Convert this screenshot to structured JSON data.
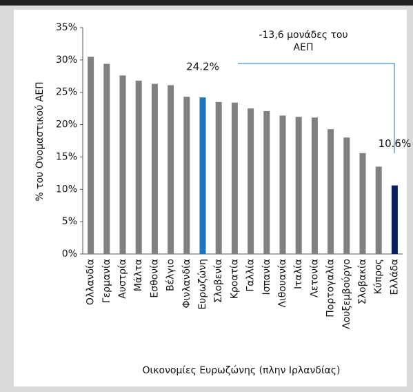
{
  "chart_data": {
    "type": "bar",
    "y_label": "% του Ονομαστικού ΑΕΠ",
    "x_label": "Οικονομίες Ευρωζώνης (πλην Ιρλανδίας)",
    "annotation": "-13,6 μονάδες του ΑΕΠ",
    "categories": [
      "Ολλανδία",
      "Γερμανία",
      "Αυστρία",
      "Μάλτα",
      "Εσθονία",
      "Βέλγιο",
      "Φινλανδία",
      "Ευρωζώνη",
      "Σλοβενία",
      "Κροατία",
      "Γαλλία",
      "Ισπανία",
      "Λιθουανία",
      "Ιταλία",
      "Λετονία",
      "Πορτογαλία",
      "Λουξεμβούργο",
      "Σλοβακία",
      "Κύπρος",
      "Ελλάδα"
    ],
    "values": [
      30.5,
      29.4,
      27.6,
      26.8,
      26.3,
      26.1,
      24.3,
      24.2,
      23.5,
      23.4,
      22.5,
      22.1,
      21.4,
      21.2,
      21.1,
      19.3,
      18.0,
      15.6,
      13.5,
      10.6
    ],
    "value_labels": [
      null,
      null,
      null,
      null,
      null,
      null,
      null,
      "24.2%",
      null,
      null,
      null,
      null,
      null,
      null,
      null,
      null,
      null,
      null,
      null,
      "10.6%"
    ],
    "colors": [
      "#808080",
      "#808080",
      "#808080",
      "#808080",
      "#808080",
      "#808080",
      "#808080",
      "#1b75bc",
      "#808080",
      "#808080",
      "#808080",
      "#808080",
      "#808080",
      "#808080",
      "#808080",
      "#808080",
      "#808080",
      "#808080",
      "#808080",
      "#0b1f5a"
    ],
    "ylim": [
      0,
      35
    ],
    "yticks": [
      {
        "value": 0,
        "label": "0%"
      },
      {
        "value": 5,
        "label": "5%"
      },
      {
        "value": 10,
        "label": "10%"
      },
      {
        "value": 15,
        "label": "15%"
      },
      {
        "value": 20,
        "label": "20%"
      },
      {
        "value": 25,
        "label": "25%"
      },
      {
        "value": 30,
        "label": "30%"
      },
      {
        "value": 35,
        "label": "35%"
      }
    ],
    "grid": false
  }
}
